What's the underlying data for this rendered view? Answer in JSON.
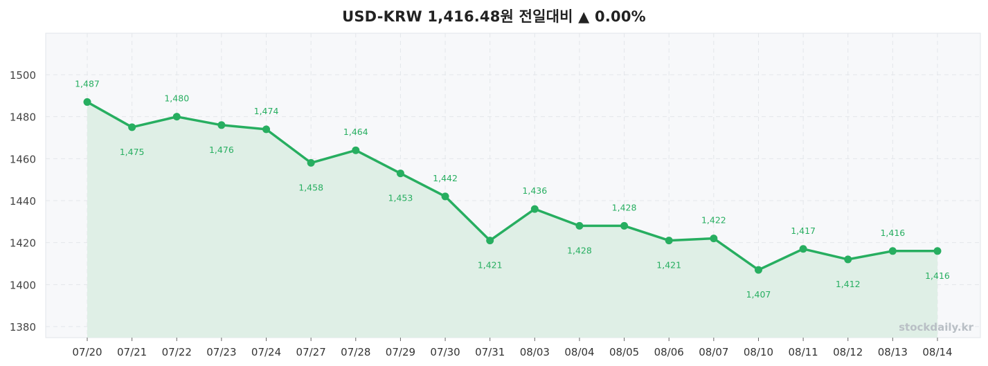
{
  "header": {
    "title": "USD-KRW  1,416.48원  전일대비 ▲ 0.00%"
  },
  "watermark": "stockdaily.kr",
  "colors": {
    "line": "#27ae60",
    "fill": "#dfefe6",
    "plot_bg": "#f7f8fa",
    "grid": "#e3e6ea"
  },
  "chart_data": {
    "type": "line",
    "title": "USD-KRW  1,416.48원  전일대비 ▲ 0.00%",
    "categories": [
      "07/20",
      "07/21",
      "07/22",
      "07/23",
      "07/24",
      "07/27",
      "07/28",
      "07/29",
      "07/30",
      "07/31",
      "08/03",
      "08/04",
      "08/05",
      "08/06",
      "08/07",
      "08/10",
      "08/11",
      "08/12",
      "08/13",
      "08/14"
    ],
    "series": [
      {
        "values": [
          1487,
          1475,
          1480,
          1476,
          1474,
          1458,
          1464,
          1453,
          1442,
          1421,
          1436,
          1428,
          1428,
          1421,
          1422,
          1407,
          1417,
          1412,
          1416,
          1416
        ],
        "labels": [
          "1,487",
          "1,475",
          "1,480",
          "1,476",
          "1,474",
          "1,458",
          "1,464",
          "1,453",
          "1,442",
          "1,421",
          "1,436",
          "1,428",
          "1,428",
          "1,421",
          "1,422",
          "1,407",
          "1,417",
          "1,412",
          "1,416",
          "1,416"
        ],
        "label_pos": [
          "above",
          "below",
          "above",
          "below",
          "above",
          "below",
          "above",
          "below",
          "above",
          "below",
          "above",
          "below",
          "above",
          "below",
          "above",
          "below",
          "above",
          "below",
          "above",
          "below"
        ]
      }
    ],
    "y_ticks": [
      1380,
      1400,
      1420,
      1440,
      1460,
      1480,
      1500
    ],
    "ylim": [
      1375,
      1520
    ],
    "grid": true,
    "area_fill": true
  }
}
